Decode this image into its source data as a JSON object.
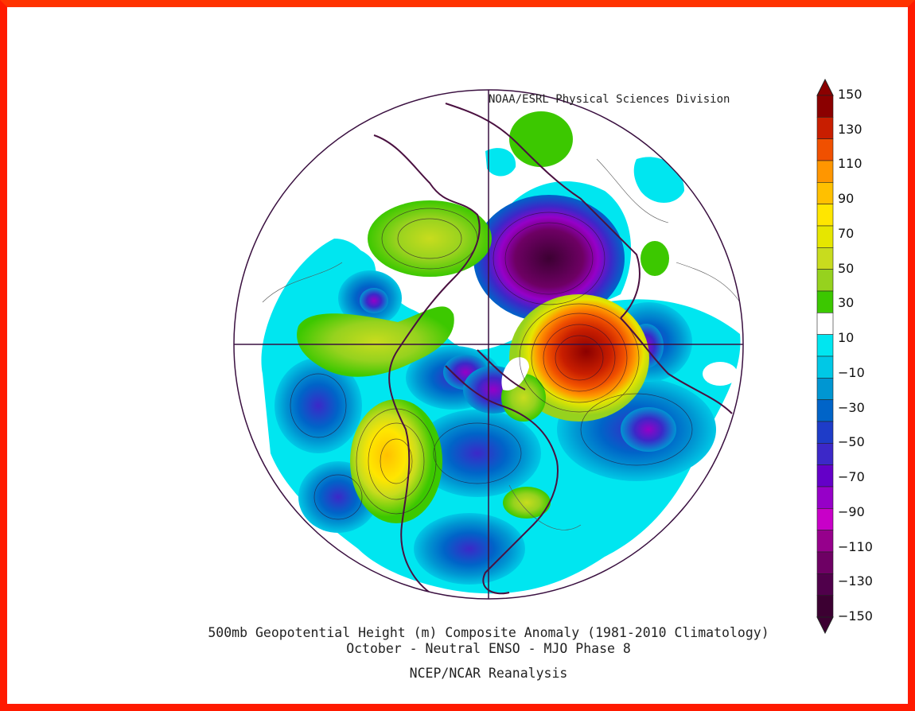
{
  "credit": "NOAA/ESRL Physical Sciences Division",
  "title_line1": "500mb Geopotential Height (m) Composite Anomaly (1981-2010 Climatology)",
  "title_line2": "October - Neutral ENSO - MJO Phase 8",
  "title_line3": "NCEP/NCAR Reanalysis",
  "colorbar": {
    "ticks": [
      "150",
      "130",
      "110",
      "90",
      "70",
      "50",
      "30",
      "10",
      "-10",
      "-30",
      "-50",
      "-70",
      "-90",
      "-110",
      "-130",
      "-150"
    ],
    "colors": [
      "#8b0000",
      "#c81e00",
      "#f05000",
      "#ff9600",
      "#ffc000",
      "#ffe600",
      "#e6e600",
      "#c8dc1e",
      "#96d21e",
      "#3cc800",
      "#ffffff",
      "#00e6f0",
      "#00c8e6",
      "#0096d2",
      "#0064c8",
      "#1e3cc8",
      "#3c28c8",
      "#6400c8",
      "#9600c8",
      "#c800c8",
      "#96008c",
      "#6e0064",
      "#50004b",
      "#3c0032"
    ],
    "range": [
      -150,
      150
    ]
  },
  "map": {
    "projection": "north-polar-stereographic",
    "field": "500mb height anomaly",
    "colors": {
      "strong_negative": "#3c0032",
      "negative": "#3c28c8",
      "weak_negative": "#00e6f0",
      "positive": "#96d21e",
      "strong_positive": "#8b0000",
      "land_outline": "#4a1040"
    }
  }
}
